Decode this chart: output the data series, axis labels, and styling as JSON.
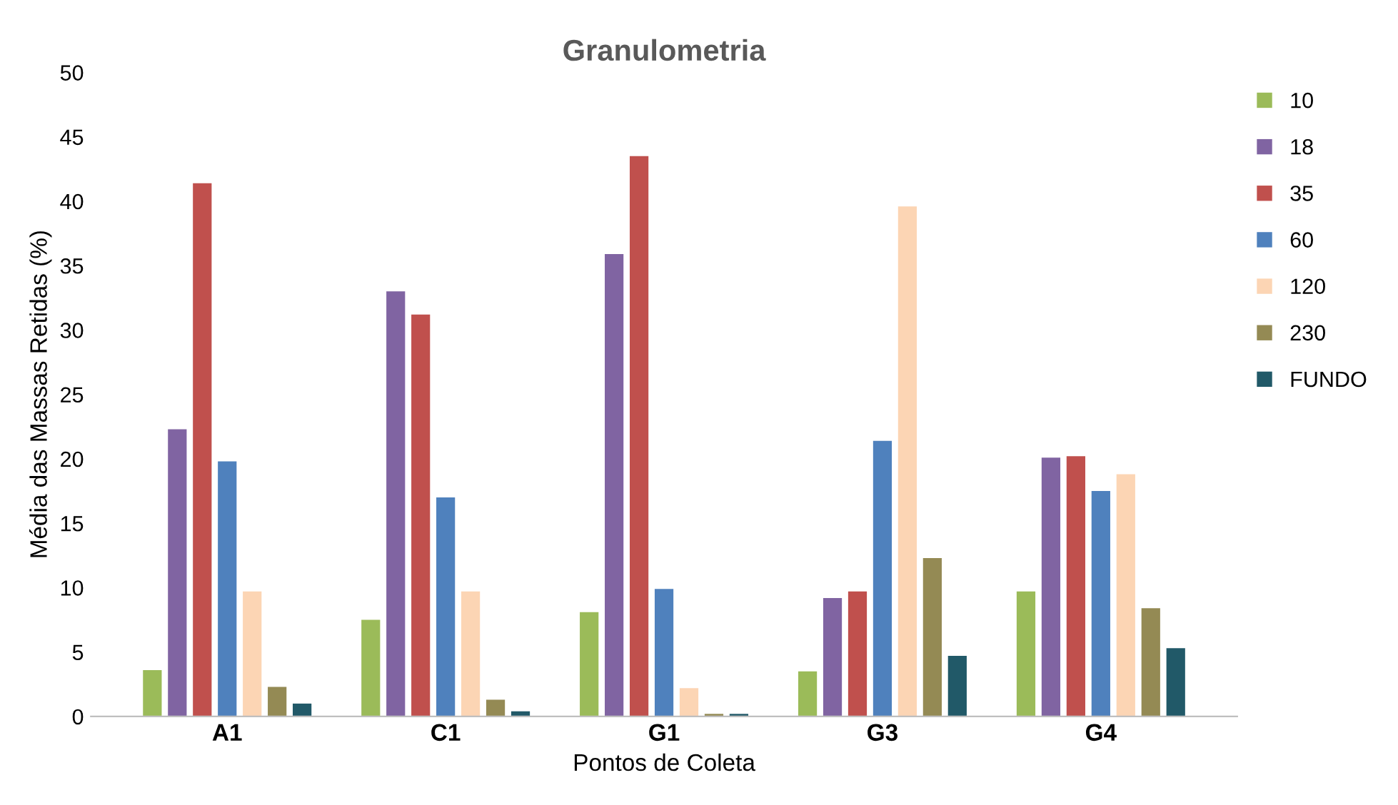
{
  "chart_data": {
    "type": "bar",
    "title": "Granulometria",
    "xlabel": "Pontos de Coleta",
    "ylabel": "Média das Massas Retidas (%)",
    "categories": [
      "A1",
      "C1",
      "G1",
      "G3",
      "G4"
    ],
    "series": [
      {
        "name": "10",
        "color": "#9bbb59",
        "values": [
          3.6,
          7.5,
          8.1,
          3.5,
          9.7
        ]
      },
      {
        "name": "18",
        "color": "#8064a2",
        "values": [
          22.3,
          33.0,
          35.9,
          9.2,
          20.1
        ]
      },
      {
        "name": "35",
        "color": "#c0504d",
        "values": [
          41.4,
          31.2,
          43.5,
          9.7,
          20.2
        ]
      },
      {
        "name": "60",
        "color": "#4f81bd",
        "values": [
          19.8,
          17.0,
          9.9,
          21.4,
          17.5
        ]
      },
      {
        "name": "120",
        "color": "#fcd5b4",
        "values": [
          9.7,
          9.7,
          2.2,
          39.6,
          18.8
        ]
      },
      {
        "name": "230",
        "color": "#948a54",
        "values": [
          2.3,
          1.3,
          0.2,
          12.3,
          8.4
        ]
      },
      {
        "name": "FUNDO",
        "color": "#215968",
        "values": [
          1.0,
          0.4,
          0.2,
          4.7,
          5.3
        ]
      }
    ],
    "ylim": [
      0,
      50
    ],
    "yticks": [
      0,
      5,
      10,
      15,
      20,
      25,
      30,
      35,
      40,
      45,
      50
    ],
    "grid": false,
    "legend": "right"
  }
}
